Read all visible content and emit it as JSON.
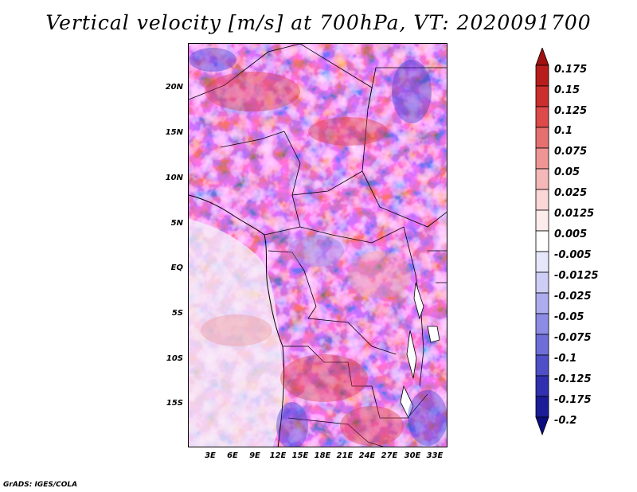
{
  "title": "Vertical velocity [m/s] at 700hPa, VT: 2020091700",
  "footer": "GrADS: IGES/COLA",
  "map": {
    "lat_labels": [
      "20N",
      "15N",
      "10N",
      "5N",
      "EQ",
      "5S",
      "10S",
      "15S"
    ],
    "lon_labels": [
      "3E",
      "6E",
      "9E",
      "12E",
      "15E",
      "18E",
      "21E",
      "24E",
      "27E",
      "30E",
      "33E"
    ]
  },
  "colorbar": {
    "labels": [
      "0.175",
      "0.15",
      "0.125",
      "0.1",
      "0.075",
      "0.05",
      "0.025",
      "0.0125",
      "0.005",
      "-0.005",
      "-0.0125",
      "-0.025",
      "-0.05",
      "-0.075",
      "-0.1",
      "-0.125",
      "-0.175",
      "-0.2"
    ],
    "colors": [
      "#a01010",
      "#b81c1c",
      "#cc2e2e",
      "#dd4a4a",
      "#e67070",
      "#ef9595",
      "#f5b8b8",
      "#fad6d6",
      "#fdecec",
      "#ffffff",
      "#e7e7fb",
      "#cdcdf5",
      "#acacee",
      "#8c8ce4",
      "#6e6ed8",
      "#4f4fc8",
      "#3030b0",
      "#1c1c98",
      "#0c0c80"
    ]
  }
}
